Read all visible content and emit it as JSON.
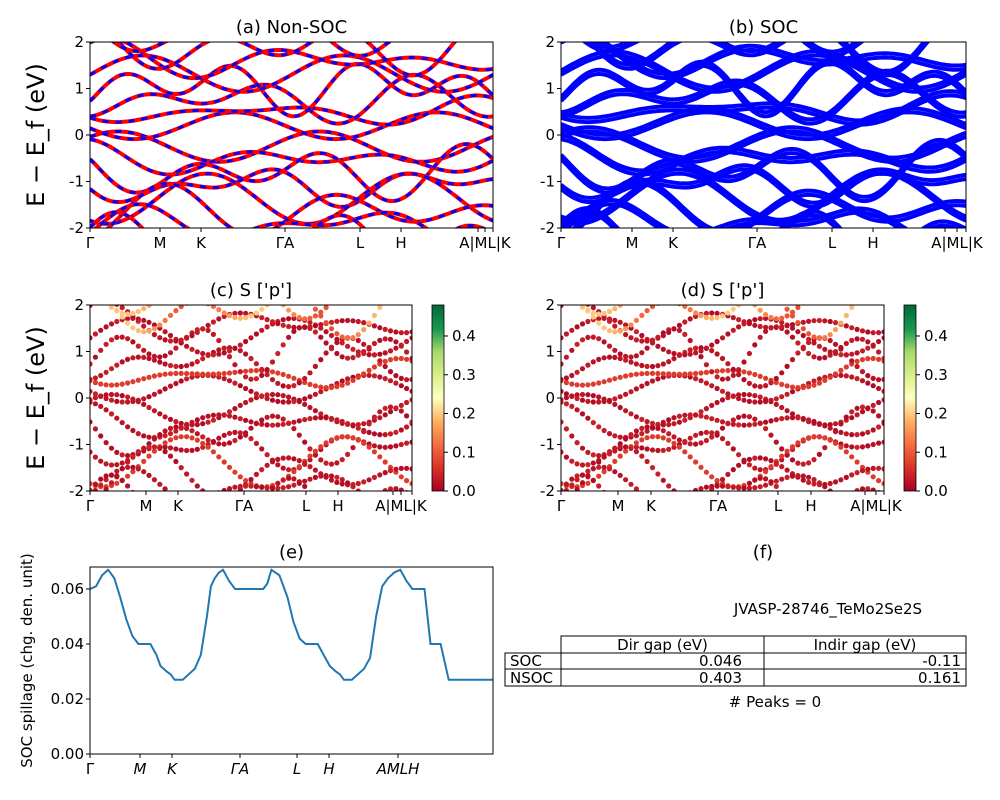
{
  "figure": {
    "ylabel_band": "E − E_f (eV)",
    "ylabel_spillage": "SOC spillage (chg. den. unit)"
  },
  "chart_data": [
    {
      "id": "a",
      "type": "line",
      "title": "(a) Non-SOC",
      "ylim": [
        -2,
        2
      ],
      "yticks": [
        -2,
        -1,
        0,
        1,
        2
      ],
      "kpath_labels": [
        "Γ",
        "M",
        "K",
        "ΓA",
        "L",
        "H",
        "A|ML|K"
      ],
      "series_colors": [
        "#0000ff",
        "#ff0000"
      ]
    },
    {
      "id": "b",
      "type": "line",
      "title": "(b) SOC",
      "ylim": [
        -2,
        2
      ],
      "yticks": [
        -2,
        -1,
        0,
        1,
        2
      ],
      "kpath_labels": [
        "Γ",
        "M",
        "K",
        "ΓA",
        "L",
        "H",
        "A|ML|K"
      ],
      "series_colors": [
        "#0000ff"
      ]
    },
    {
      "id": "c",
      "type": "scatter",
      "title": "(c)  S ['p']",
      "ylim": [
        -2,
        2
      ],
      "yticks": [
        -2,
        -1,
        0,
        1,
        2
      ],
      "kpath_labels": [
        "Γ",
        "M",
        "K",
        "ΓA",
        "L",
        "H",
        "A|ML|K"
      ],
      "colorbar": {
        "range": [
          0.0,
          0.48
        ],
        "ticks": [
          "0.0",
          "0.1",
          "0.2",
          "0.3",
          "0.4"
        ],
        "colormap": "RdYlGn"
      }
    },
    {
      "id": "d",
      "type": "scatter",
      "title": "(d) S ['p']",
      "ylim": [
        -2,
        2
      ],
      "yticks": [
        -2,
        -1,
        0,
        1,
        2
      ],
      "kpath_labels": [
        "Γ",
        "M",
        "K",
        "ΓA",
        "L",
        "H",
        "A|ML|K"
      ],
      "colorbar": {
        "range": [
          0.0,
          0.48
        ],
        "ticks": [
          "0.0",
          "0.1",
          "0.2",
          "0.3",
          "0.4"
        ],
        "colormap": "RdYlGn"
      }
    },
    {
      "id": "e",
      "type": "line",
      "title": "(e)",
      "ylabel": "SOC spillage (chg. den. unit)",
      "ylim": [
        0,
        0.068
      ],
      "yticks": [
        "0.00",
        "0.02",
        "0.04",
        "0.06"
      ],
      "xlim": [
        0,
        1
      ],
      "kpath_labels": [
        "Γ",
        "M",
        "K",
        "ΓA",
        "L",
        "H",
        "AMLH"
      ],
      "series": [
        {
          "color": "#1f77b4",
          "x": [
            0,
            0.015,
            0.03,
            0.045,
            0.06,
            0.075,
            0.09,
            0.105,
            0.12,
            0.135,
            0.15,
            0.165,
            0.175,
            0.19,
            0.2,
            0.21,
            0.22,
            0.23,
            0.245,
            0.26,
            0.275,
            0.29,
            0.3,
            0.31,
            0.32,
            0.33,
            0.345,
            0.36,
            0.375,
            0.39,
            0.41,
            0.43,
            0.44,
            0.45,
            0.47,
            0.49,
            0.505,
            0.52,
            0.535,
            0.55,
            0.565,
            0.58,
            0.595,
            0.61,
            0.62,
            0.63,
            0.64,
            0.65,
            0.665,
            0.68,
            0.695,
            0.71,
            0.725,
            0.74,
            0.755,
            0.77,
            0.785,
            0.8,
            0.815,
            0.83,
            0.845,
            0.86,
            0.87,
            0.89,
            0.915,
            0.916,
            0.95,
            0.951,
            1.0
          ],
          "y": [
            0.06,
            0.061,
            0.065,
            0.067,
            0.064,
            0.057,
            0.049,
            0.043,
            0.04,
            0.04,
            0.04,
            0.036,
            0.032,
            0.03,
            0.029,
            0.027,
            0.027,
            0.027,
            0.029,
            0.031,
            0.036,
            0.05,
            0.061,
            0.064,
            0.066,
            0.067,
            0.063,
            0.06,
            0.06,
            0.06,
            0.06,
            0.06,
            0.062,
            0.067,
            0.065,
            0.057,
            0.048,
            0.042,
            0.04,
            0.04,
            0.04,
            0.036,
            0.032,
            0.03,
            0.029,
            0.027,
            0.027,
            0.027,
            0.029,
            0.031,
            0.035,
            0.05,
            0.061,
            0.064,
            0.066,
            0.067,
            0.063,
            0.06,
            0.06,
            0.06,
            0.04,
            0.04,
            0.04,
            0.027,
            0.027,
            0.027,
            0.027,
            0.027,
            0.027
          ]
        }
      ]
    },
    {
      "id": "f",
      "type": "table",
      "title": "(f)",
      "header_text": "JVASP-28746_TeMo2Se2S",
      "columns": [
        "",
        "Dir gap (eV)",
        "Indir gap (eV)"
      ],
      "rows": [
        [
          "SOC",
          "0.046",
          "-0.11"
        ],
        [
          "NSOC",
          "0.403",
          "0.161"
        ]
      ],
      "footer_text": "# Peaks = 0"
    }
  ]
}
